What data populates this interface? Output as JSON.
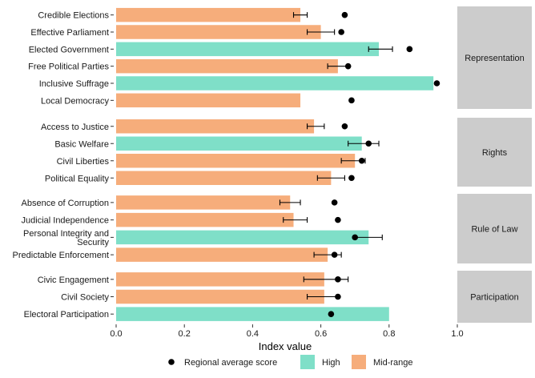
{
  "chart_data": {
    "type": "bar",
    "orientation": "horizontal",
    "xlabel": "Index value",
    "ylabel": "",
    "xlim": [
      0,
      1.0
    ],
    "x_ticks": [
      "0.0",
      "0.2",
      "0.4",
      "0.6",
      "0.8",
      "1.0"
    ],
    "legend_position": "bottom",
    "legend": {
      "marker_label": "Regional average score",
      "fill_entries": [
        {
          "label": "High",
          "color": "#7fdfc8"
        },
        {
          "label": "Mid-range",
          "color": "#f6ad7b"
        }
      ]
    },
    "colors": {
      "High": "#7fdfc8",
      "Mid-range": "#f6ad7b",
      "facet_strip": "#cccccc",
      "point": "#000000"
    },
    "facets": [
      {
        "name": "Representation",
        "items": [
          {
            "label": "Credible Elections",
            "value": 0.54,
            "err": [
              0.52,
              0.56
            ],
            "avg": 0.67,
            "category": "Mid-range"
          },
          {
            "label": "Effective Parliament",
            "value": 0.6,
            "err": [
              0.56,
              0.64
            ],
            "avg": 0.66,
            "category": "Mid-range"
          },
          {
            "label": "Elected Government",
            "value": 0.77,
            "err": [
              0.74,
              0.81
            ],
            "avg": 0.86,
            "category": "High"
          },
          {
            "label": "Free Political Parties",
            "value": 0.65,
            "err": [
              0.62,
              0.68
            ],
            "avg": 0.68,
            "category": "Mid-range"
          },
          {
            "label": "Inclusive Suffrage",
            "value": 0.93,
            "avg": 0.94,
            "category": "High"
          },
          {
            "label": "Local Democracy",
            "value": 0.54,
            "avg": 0.69,
            "category": "Mid-range"
          }
        ]
      },
      {
        "name": "Rights",
        "items": [
          {
            "label": "Access to Justice",
            "value": 0.58,
            "err": [
              0.56,
              0.61
            ],
            "avg": 0.67,
            "category": "Mid-range"
          },
          {
            "label": "Basic Welfare",
            "value": 0.72,
            "err": [
              0.68,
              0.77
            ],
            "avg": 0.74,
            "category": "High"
          },
          {
            "label": "Civil Liberties",
            "value": 0.7,
            "err": [
              0.66,
              0.73
            ],
            "avg": 0.72,
            "category": "Mid-range"
          },
          {
            "label": "Political Equality",
            "value": 0.63,
            "err": [
              0.59,
              0.67
            ],
            "avg": 0.69,
            "category": "Mid-range"
          }
        ]
      },
      {
        "name": "Rule of Law",
        "items": [
          {
            "label": "Absence of Corruption",
            "value": 0.51,
            "err": [
              0.48,
              0.54
            ],
            "avg": 0.64,
            "category": "Mid-range"
          },
          {
            "label": "Judicial Independence",
            "value": 0.52,
            "err": [
              0.49,
              0.56
            ],
            "avg": 0.65,
            "category": "Mid-range"
          },
          {
            "label": "Personal Integrity and\nSecurity",
            "value": 0.74,
            "err": [
              0.7,
              0.78
            ],
            "avg": 0.7,
            "category": "High"
          },
          {
            "label": "Predictable Enforcement",
            "value": 0.62,
            "err": [
              0.58,
              0.66
            ],
            "avg": 0.64,
            "category": "Mid-range"
          }
        ]
      },
      {
        "name": "Participation",
        "items": [
          {
            "label": "Civic Engagement",
            "value": 0.61,
            "err": [
              0.55,
              0.68
            ],
            "avg": 0.65,
            "category": "Mid-range"
          },
          {
            "label": "Civil Society",
            "value": 0.61,
            "err": [
              0.56,
              0.65
            ],
            "avg": 0.65,
            "category": "Mid-range"
          },
          {
            "label": "Electoral Participation",
            "value": 0.8,
            "avg": 0.63,
            "category": "High"
          }
        ]
      }
    ]
  }
}
